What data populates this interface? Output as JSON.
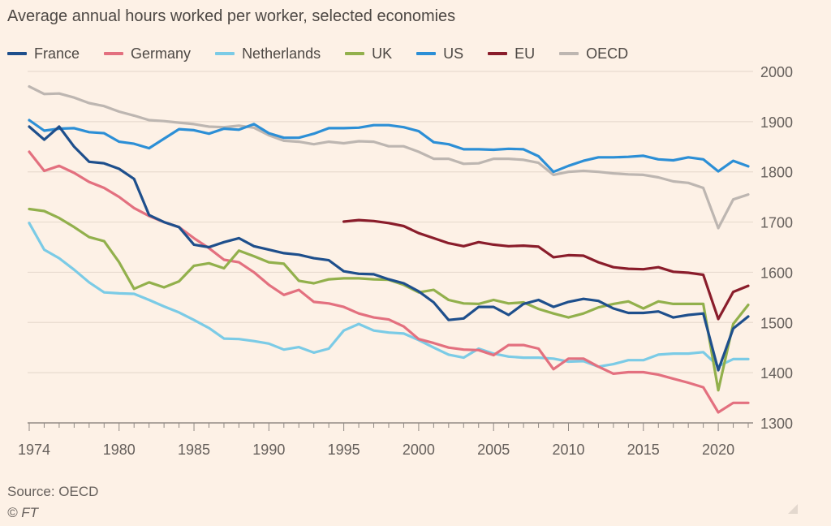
{
  "chart_data": {
    "type": "line",
    "title": "Average annual hours worked per worker, selected economies",
    "xlabel": "",
    "ylabel": "",
    "xlim": [
      1974,
      2022
    ],
    "ylim": [
      1300,
      2000
    ],
    "yticks": [
      1300,
      1400,
      1500,
      1600,
      1700,
      1800,
      1900,
      2000
    ],
    "xticks": [
      1974,
      1980,
      1985,
      1990,
      1995,
      2000,
      2005,
      2010,
      2015,
      2020
    ],
    "x_start": 1974,
    "legend_position": "top",
    "grid": "horizontal",
    "series": [
      {
        "name": "France",
        "color": "#1e4f8c",
        "x_start": 1974,
        "values": [
          1890,
          1864,
          1890,
          1850,
          1820,
          1817,
          1806,
          1786,
          1714,
          1700,
          1690,
          1655,
          1650,
          1660,
          1668,
          1652,
          1645,
          1638,
          1635,
          1628,
          1624,
          1602,
          1597,
          1596,
          1586,
          1578,
          1562,
          1540,
          1505,
          1508,
          1531,
          1531,
          1515,
          1537,
          1545,
          1531,
          1541,
          1547,
          1543,
          1528,
          1519,
          1519,
          1522,
          1510,
          1515,
          1518,
          1405,
          1488,
          1512
        ]
      },
      {
        "name": "Germany",
        "color": "#e3707f",
        "x_start": 1974,
        "values": [
          1840,
          1802,
          1812,
          1798,
          1780,
          1768,
          1750,
          1728,
          1712,
          1700,
          1690,
          1668,
          1648,
          1625,
          1620,
          1600,
          1575,
          1555,
          1565,
          1541,
          1538,
          1531,
          1518,
          1510,
          1506,
          1492,
          1467,
          1459,
          1450,
          1446,
          1445,
          1435,
          1455,
          1455,
          1448,
          1407,
          1428,
          1428,
          1412,
          1398,
          1401,
          1401,
          1396,
          1388,
          1380,
          1371,
          1321,
          1340,
          1340
        ]
      },
      {
        "name": "Netherlands",
        "color": "#7bcbe6",
        "x_start": 1974,
        "values": [
          1698,
          1645,
          1628,
          1605,
          1580,
          1560,
          1558,
          1557,
          1545,
          1532,
          1520,
          1505,
          1489,
          1468,
          1467,
          1463,
          1458,
          1446,
          1451,
          1440,
          1448,
          1484,
          1497,
          1484,
          1480,
          1478,
          1465,
          1450,
          1436,
          1430,
          1448,
          1438,
          1432,
          1430,
          1430,
          1428,
          1422,
          1423,
          1412,
          1417,
          1425,
          1425,
          1436,
          1438,
          1438,
          1441,
          1413,
          1427,
          1427
        ]
      },
      {
        "name": "UK",
        "color": "#92b04c",
        "x_start": 1974,
        "values": [
          1726,
          1722,
          1708,
          1690,
          1670,
          1662,
          1620,
          1567,
          1580,
          1570,
          1582,
          1613,
          1618,
          1608,
          1643,
          1632,
          1620,
          1617,
          1583,
          1578,
          1586,
          1588,
          1588,
          1586,
          1585,
          1575,
          1560,
          1565,
          1545,
          1538,
          1537,
          1545,
          1538,
          1540,
          1527,
          1518,
          1510,
          1518,
          1530,
          1537,
          1542,
          1528,
          1542,
          1537,
          1537,
          1537,
          1365,
          1497,
          1535
        ]
      },
      {
        "name": "US",
        "color": "#2c8fd6",
        "x_start": 1974,
        "values": [
          1903,
          1882,
          1886,
          1887,
          1879,
          1877,
          1860,
          1856,
          1847,
          1866,
          1885,
          1883,
          1876,
          1886,
          1884,
          1895,
          1877,
          1868,
          1868,
          1876,
          1887,
          1887,
          1888,
          1893,
          1893,
          1889,
          1881,
          1859,
          1855,
          1845,
          1845,
          1844,
          1846,
          1845,
          1831,
          1800,
          1812,
          1822,
          1829,
          1829,
          1830,
          1832,
          1825,
          1823,
          1829,
          1825,
          1801,
          1822,
          1811
        ]
      },
      {
        "name": "EU",
        "color": "#8a1d2b",
        "x_start": 1995,
        "values": [
          1701,
          1704,
          1702,
          1698,
          1692,
          1678,
          1668,
          1658,
          1652,
          1660,
          1655,
          1652,
          1653,
          1651,
          1630,
          1634,
          1633,
          1620,
          1610,
          1607,
          1606,
          1610,
          1601,
          1599,
          1595,
          1507,
          1561,
          1573
        ]
      },
      {
        "name": "OECD",
        "color": "#bdb6b1",
        "x_start": 1974,
        "values": [
          1970,
          1955,
          1956,
          1948,
          1937,
          1931,
          1920,
          1912,
          1903,
          1901,
          1898,
          1895,
          1890,
          1889,
          1892,
          1888,
          1873,
          1862,
          1860,
          1855,
          1860,
          1857,
          1861,
          1860,
          1851,
          1851,
          1840,
          1826,
          1826,
          1816,
          1817,
          1826,
          1826,
          1824,
          1818,
          1794,
          1800,
          1802,
          1800,
          1797,
          1795,
          1794,
          1789,
          1781,
          1778,
          1768,
          1688,
          1745,
          1755
        ]
      }
    ]
  },
  "footer": {
    "source": "Source: OECD",
    "credit": "© FT"
  }
}
